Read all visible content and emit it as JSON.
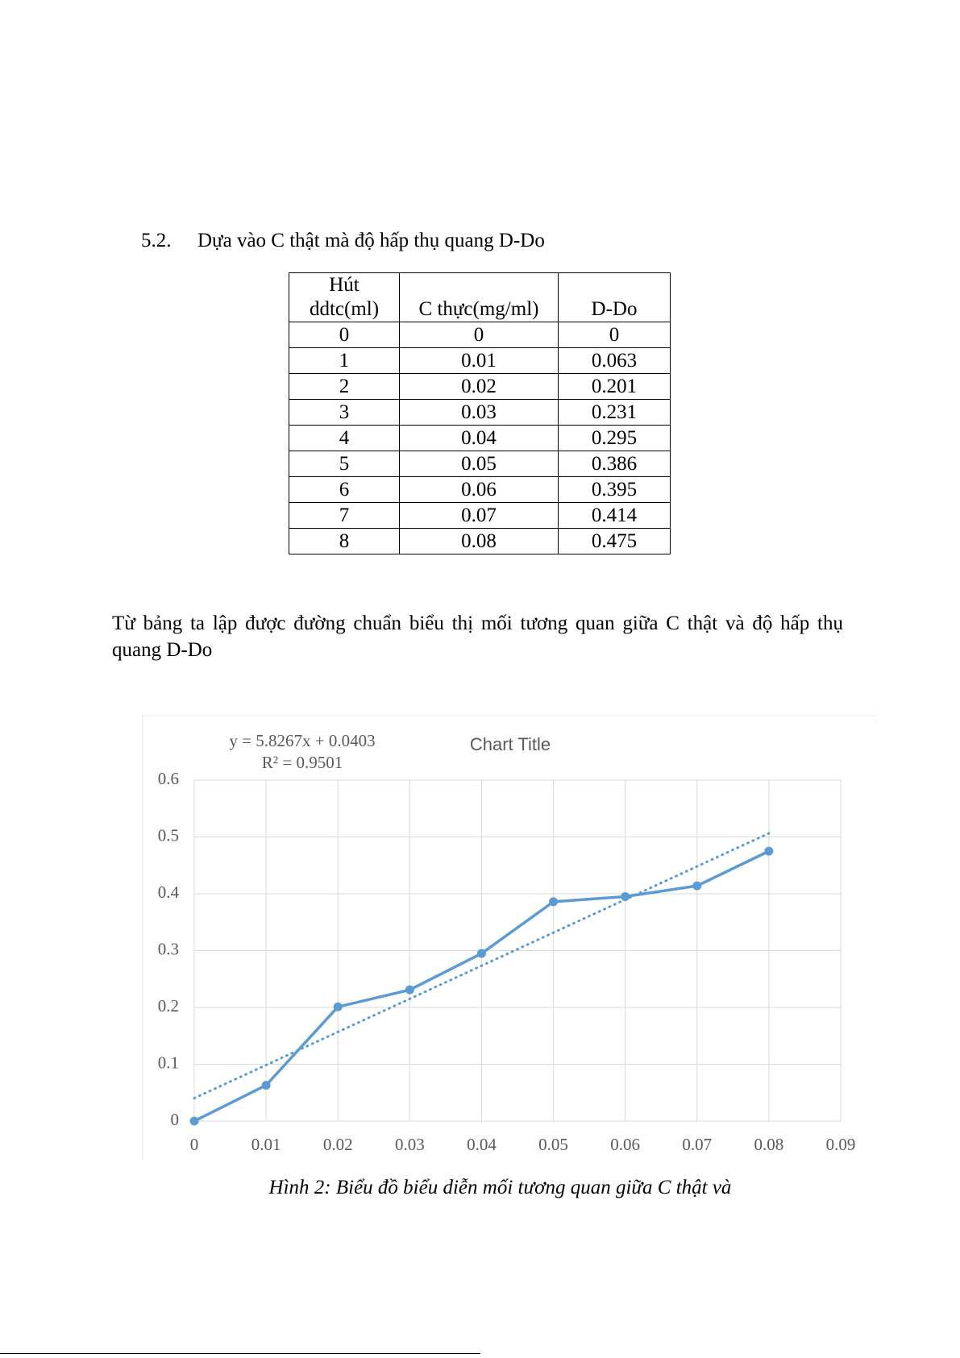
{
  "heading": {
    "number": "5.2.",
    "text": "Dựa vào C thật mà độ hấp thụ quang D-Do"
  },
  "table": {
    "header": [
      "Hút ddtc(ml)",
      "C thực(mg/ml)",
      "D-Do"
    ],
    "rows": [
      [
        "0",
        "0",
        "0"
      ],
      [
        "1",
        "0.01",
        "0.063"
      ],
      [
        "2",
        "0.02",
        "0.201"
      ],
      [
        "3",
        "0.03",
        "0.231"
      ],
      [
        "4",
        "0.04",
        "0.295"
      ],
      [
        "5",
        "0.05",
        "0.386"
      ],
      [
        "6",
        "0.06",
        "0.395"
      ],
      [
        "7",
        "0.07",
        "0.414"
      ],
      [
        "8",
        "0.08",
        "0.475"
      ]
    ]
  },
  "paragraph": "Từ bảng ta lập được đường chuẩn biểu thị mối tương quan giữa C thật và độ hấp thụ quang D-Do",
  "chart_data": {
    "type": "line",
    "title": "Chart Title",
    "x": [
      0,
      0.01,
      0.02,
      0.03,
      0.04,
      0.05,
      0.06,
      0.07,
      0.08
    ],
    "series": [
      {
        "color": "#5b9bd5",
        "values": [
          0,
          0.063,
          0.201,
          0.231,
          0.295,
          0.386,
          0.395,
          0.414,
          0.475
        ]
      }
    ],
    "trendline": {
      "slope": 5.8267,
      "intercept": 0.0403,
      "equation": "y = 5.8267x + 0.0403",
      "r2_label": "R² = 0.9501",
      "color": "#5b9bd5"
    },
    "xlim": [
      0,
      0.09
    ],
    "xticks": [
      0,
      0.01,
      0.02,
      0.03,
      0.04,
      0.05,
      0.06,
      0.07,
      0.08,
      0.09
    ],
    "ylim": [
      0,
      0.6
    ],
    "yticks": [
      0,
      0.1,
      0.2,
      0.3,
      0.4,
      0.5,
      0.6
    ],
    "grid": true
  },
  "caption": "Hình 2: Biểu đồ biểu diễn mối tương quan giữa C thật và"
}
